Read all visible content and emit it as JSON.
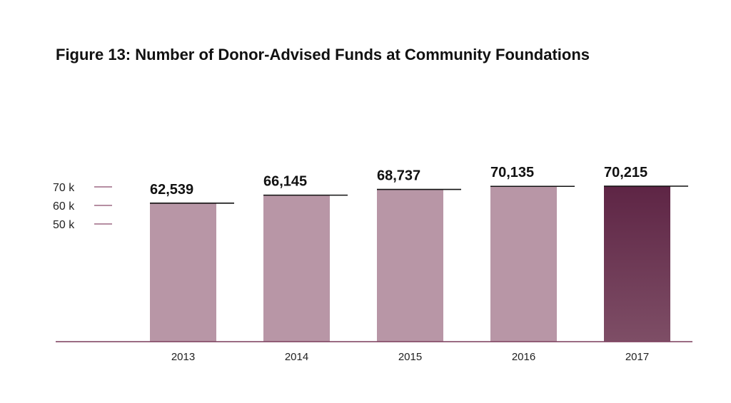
{
  "chart_data": {
    "type": "bar",
    "title": "Figure 13: Number of Donor-Advised Funds at Community Foundations",
    "categories": [
      "2013",
      "2014",
      "2015",
      "2016",
      "2017"
    ],
    "values": [
      62539,
      66145,
      68737,
      70135,
      70215
    ],
    "value_labels": [
      "62,539",
      "66,145",
      "68,737",
      "70,135",
      "70,215"
    ],
    "y_ticks": [
      {
        "label": "70 k",
        "value": 70000
      },
      {
        "label": "60 k",
        "value": 60000
      },
      {
        "label": "50 k",
        "value": 50000
      }
    ],
    "ylim": [
      0,
      70215
    ],
    "grid": false,
    "highlight_index": 4,
    "colors": {
      "bar": "#b896a6",
      "highlight_top": "#5e2545",
      "highlight_bottom": "#7e4e66",
      "axis": "#7a3b5a",
      "tick": "#8a4a6a",
      "value_line": "#111111"
    }
  }
}
